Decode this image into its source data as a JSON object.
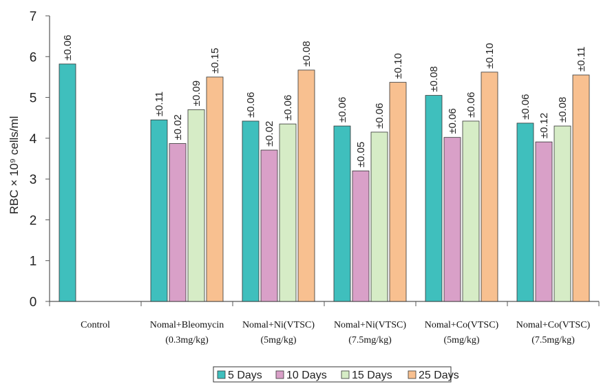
{
  "chart_data": {
    "type": "bar",
    "ylabel": "RBC × 10⁹ cells/ml",
    "xlabel": "",
    "ylim": [
      0,
      7
    ],
    "yticks": [
      "0",
      "1",
      "2",
      "3",
      "4",
      "5",
      "6",
      "7"
    ],
    "categories": [
      [
        "Control"
      ],
      [
        "Nomal+Bleomycin",
        "(0.3mg/kg)"
      ],
      [
        "Nomal+Ni(VTSC)",
        "(5mg/kg)"
      ],
      [
        "Nomal+Ni(VTSC)",
        "(7.5mg/kg)"
      ],
      [
        "Nomal+Co(VTSC)",
        "(5mg/kg)"
      ],
      [
        "Nomal+Co(VTSC)",
        "(7.5mg/kg)"
      ]
    ],
    "series": [
      {
        "name": "5 Days",
        "color": "#3fbfbd",
        "values": [
          5.82,
          4.45,
          4.42,
          4.3,
          5.05,
          4.37
        ],
        "errors": [
          "±0.06",
          "±0.11",
          "±0.06",
          "±0.06",
          "±0.08",
          "±0.06"
        ]
      },
      {
        "name": "10 Days",
        "color": "#d9a0c8",
        "values": [
          null,
          3.87,
          3.71,
          3.2,
          4.02,
          3.91
        ],
        "errors": [
          null,
          "±0.02",
          "±0.02",
          "±0.05",
          "±0.06",
          "±0.12"
        ]
      },
      {
        "name": "15 Days",
        "color": "#d6ecc6",
        "values": [
          null,
          4.7,
          4.35,
          4.15,
          4.42,
          4.3
        ],
        "errors": [
          null,
          "±0.09",
          "±0.06",
          "±0.06",
          "±0.06",
          "±0.08"
        ]
      },
      {
        "name": "25 Days",
        "color": "#f8c090",
        "values": [
          null,
          5.5,
          5.67,
          5.37,
          5.62,
          5.55
        ],
        "errors": [
          null,
          "±0.15",
          "±0.08",
          "±0.10",
          "±0.10",
          "±0.11"
        ]
      }
    ],
    "grid": false,
    "legend": "bottom"
  }
}
